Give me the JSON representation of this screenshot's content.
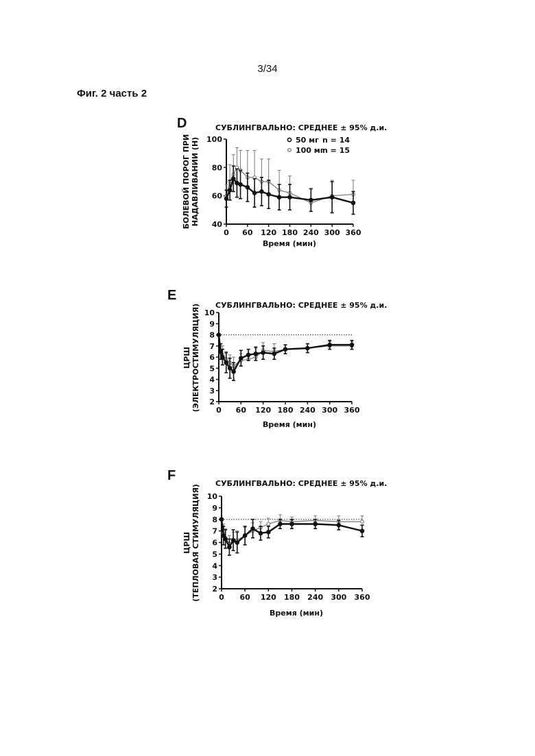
{
  "page_number": "3/34",
  "figure_caption": "Фиг. 2 часть 2",
  "chart_data": [
    {
      "panel": "D",
      "type": "line",
      "title": "СУБЛИНГВАЛЬНО: СРЕДНЕЕ ± 95% д.и.",
      "xlabel": "Время (мин)",
      "ylabel": [
        "БОЛЕВОЙ ПОРОГ ПРИ",
        "НАДАВЛИВАНИИ (Н)"
      ],
      "xlim": [
        0,
        360
      ],
      "ylim": [
        40,
        100
      ],
      "xticks": [
        0,
        60,
        120,
        180,
        240,
        300,
        360
      ],
      "yticks": [
        40,
        60,
        80,
        100
      ],
      "reference_line": null,
      "legend": {
        "placement": "top-right",
        "entries": [
          {
            "label": "50 мг",
            "n": "n = 14"
          },
          {
            "label": "100 мг",
            "n": "n = 15"
          }
        ]
      },
      "series": [
        {
          "name": "50 мг",
          "style": "bold",
          "marker": "filled",
          "x": [
            0,
            10,
            20,
            30,
            40,
            60,
            80,
            100,
            120,
            150,
            180,
            240,
            300,
            360
          ],
          "y": [
            58,
            64,
            72,
            69,
            68,
            66,
            62,
            63,
            61,
            59,
            59,
            57,
            59,
            55
          ],
          "err": [
            6,
            7,
            9,
            10,
            10,
            10,
            10,
            10,
            10,
            9,
            9,
            8,
            11,
            8
          ]
        },
        {
          "name": "100 мг",
          "style": "thin",
          "marker": "open",
          "x": [
            0,
            10,
            20,
            30,
            40,
            60,
            80,
            100,
            120,
            150,
            180,
            240,
            300,
            360
          ],
          "y": [
            60,
            70,
            75,
            80,
            78,
            73,
            73,
            70,
            70,
            64,
            62,
            55,
            60,
            61
          ],
          "err": [
            8,
            12,
            14,
            14,
            14,
            19,
            19,
            16,
            16,
            14,
            12,
            10,
            11,
            10
          ]
        }
      ]
    },
    {
      "panel": "E",
      "type": "line",
      "title": "СУБЛИНГВАЛЬНО: СРЕДНЕЕ ± 95% д.и.",
      "xlabel": "Время (мин)",
      "ylabel": [
        "ЦРШ",
        "(ЭЛЕКТРОСТИМУЛЯЦИЯ)"
      ],
      "xlim": [
        0,
        360
      ],
      "ylim": [
        2,
        10
      ],
      "xticks": [
        0,
        60,
        120,
        180,
        240,
        300,
        360
      ],
      "yticks": [
        2,
        3,
        4,
        5,
        6,
        7,
        8,
        9,
        10
      ],
      "reference_line": 8,
      "series": [
        {
          "name": "50 мг",
          "style": "bold",
          "marker": "filled",
          "x": [
            0,
            5,
            10,
            20,
            30,
            40,
            60,
            80,
            100,
            120,
            150,
            180,
            240,
            300,
            360
          ],
          "y": [
            8.0,
            6.5,
            6.0,
            5.5,
            5.0,
            4.7,
            5.9,
            6.2,
            6.3,
            6.4,
            6.3,
            6.7,
            6.8,
            7.1,
            7.1
          ],
          "err": [
            0.1,
            0.7,
            0.7,
            0.9,
            0.9,
            0.8,
            0.7,
            0.5,
            0.6,
            0.6,
            0.5,
            0.4,
            0.4,
            0.4,
            0.4
          ]
        },
        {
          "name": "100 мг",
          "style": "thin",
          "marker": "open",
          "x": [
            0,
            5,
            10,
            20,
            30,
            40,
            60,
            80,
            100,
            120,
            150,
            180,
            240,
            300,
            360
          ],
          "y": [
            8.0,
            6.4,
            6.2,
            5.8,
            5.5,
            5.2,
            5.7,
            5.8,
            6.0,
            6.6,
            6.5,
            6.7,
            6.8,
            7.0,
            7.0
          ],
          "err": [
            0.1,
            0.8,
            0.8,
            0.7,
            0.7,
            0.8,
            0.6,
            0.5,
            0.8,
            0.7,
            0.7,
            0.4,
            0.4,
            0.4,
            0.4
          ]
        }
      ]
    },
    {
      "panel": "F",
      "type": "line",
      "title": "СУБЛИНГВАЛЬНО: СРЕДНЕЕ ± 95% д.и.",
      "xlabel": "Время (мин)",
      "ylabel": [
        "ЦРШ",
        "(ТЕПЛОВАЯ СТИМУЛЯЦИЯ)"
      ],
      "xlim": [
        0,
        360
      ],
      "ylim": [
        2,
        10
      ],
      "xticks": [
        0,
        60,
        120,
        180,
        240,
        300,
        360
      ],
      "yticks": [
        2,
        3,
        4,
        5,
        6,
        7,
        8,
        9,
        10
      ],
      "reference_line": 8,
      "series": [
        {
          "name": "50 мг",
          "style": "bold",
          "marker": "filled",
          "x": [
            0,
            5,
            10,
            20,
            30,
            40,
            60,
            80,
            100,
            120,
            150,
            180,
            240,
            300,
            360
          ],
          "y": [
            8.0,
            6.6,
            6.3,
            5.6,
            6.2,
            6.0,
            6.6,
            7.2,
            6.8,
            6.9,
            7.6,
            7.6,
            7.6,
            7.5,
            7.0
          ],
          "err": [
            0.1,
            0.8,
            0.8,
            0.7,
            0.9,
            0.9,
            0.8,
            0.8,
            0.6,
            0.5,
            0.4,
            0.4,
            0.4,
            0.4,
            0.5
          ]
        },
        {
          "name": "100 мг",
          "style": "thin",
          "marker": "open",
          "x": [
            0,
            5,
            10,
            20,
            30,
            40,
            60,
            80,
            100,
            120,
            150,
            180,
            240,
            300,
            360
          ],
          "y": [
            8.0,
            6.8,
            6.4,
            5.9,
            6.1,
            6.2,
            6.6,
            7.0,
            7.3,
            7.6,
            7.9,
            7.8,
            7.9,
            7.8,
            7.8
          ],
          "err": [
            0.1,
            0.8,
            0.8,
            0.7,
            0.8,
            0.8,
            0.7,
            0.7,
            0.5,
            0.5,
            0.5,
            0.4,
            0.4,
            0.5,
            0.5
          ]
        }
      ]
    }
  ]
}
